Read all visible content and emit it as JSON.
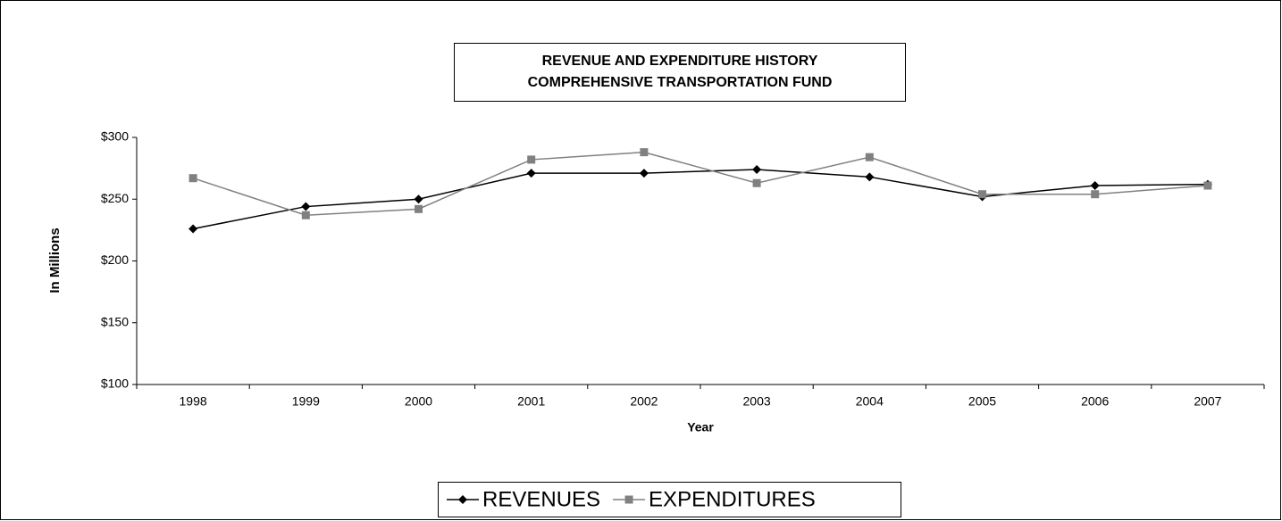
{
  "chart_data": {
    "type": "line",
    "title": [
      "REVENUE AND EXPENDITURE HISTORY",
      "COMPREHENSIVE TRANSPORTATION FUND"
    ],
    "x_label": "Year",
    "y_label": "In Millions",
    "categories": [
      "1998",
      "1999",
      "2000",
      "2001",
      "2002",
      "2003",
      "2004",
      "2005",
      "2006",
      "2007"
    ],
    "series": [
      {
        "name": "REVENUES",
        "color": "#000000",
        "marker": "diamond",
        "values": [
          226,
          244,
          250,
          271,
          271,
          274,
          268,
          252,
          261,
          262
        ]
      },
      {
        "name": "EXPENDITURES",
        "color": "#808080",
        "marker": "square",
        "values": [
          267,
          237,
          242,
          282,
          288,
          263,
          284,
          254,
          254,
          261
        ]
      }
    ],
    "ylim": [
      100,
      300
    ],
    "yticks": [
      {
        "value": 100,
        "label": "$100"
      },
      {
        "value": 150,
        "label": "$150"
      },
      {
        "value": 200,
        "label": "$200"
      },
      {
        "value": 250,
        "label": "$250"
      },
      {
        "value": 300,
        "label": "$300"
      }
    ],
    "grid": false,
    "legend": "bottom"
  }
}
